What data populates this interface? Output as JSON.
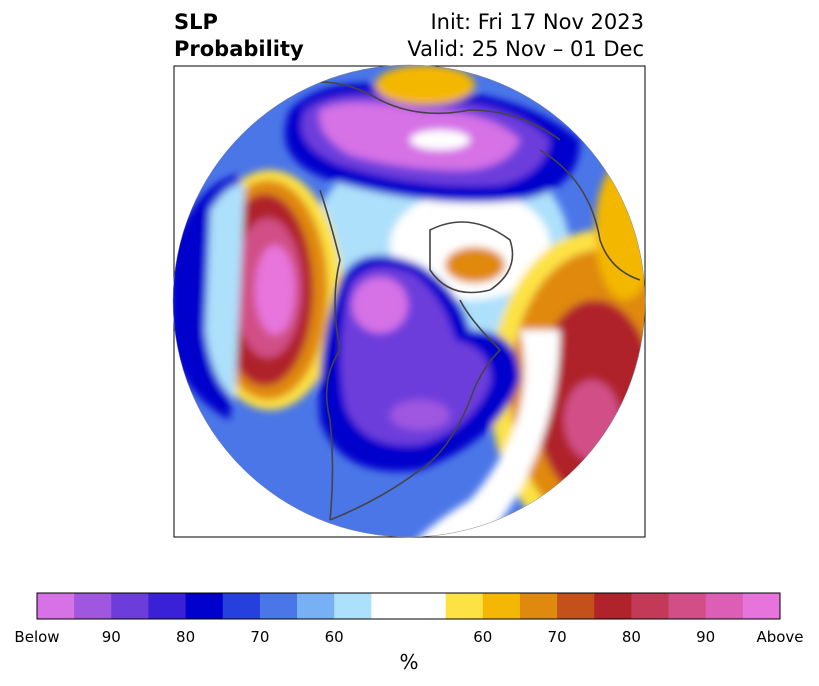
{
  "title": {
    "left_line1": "SLP",
    "left_line2": "Probability",
    "right_line1": "Init: Fri 17 Nov 2023",
    "right_line2": "Valid: 25 Nov – 01 Dec"
  },
  "colorbar": {
    "unit": "%",
    "below_colors": [
      "#d671e6",
      "#9f57e0",
      "#6d3ddc",
      "#3a20d6",
      "#0000cc",
      "#2540dc",
      "#4a76e8",
      "#77b1f4",
      "#ade0fb"
    ],
    "neutral_color": "#ffffff",
    "above_colors": [
      "#fde244",
      "#f4b704",
      "#e0890f",
      "#c4511a",
      "#b0232b",
      "#c23a57",
      "#d14f86",
      "#dc5fb5",
      "#e774dc"
    ],
    "tick_labels": [
      "Below",
      "90",
      "80",
      "70",
      "60",
      "60",
      "70",
      "80",
      "90",
      "Above"
    ]
  }
}
